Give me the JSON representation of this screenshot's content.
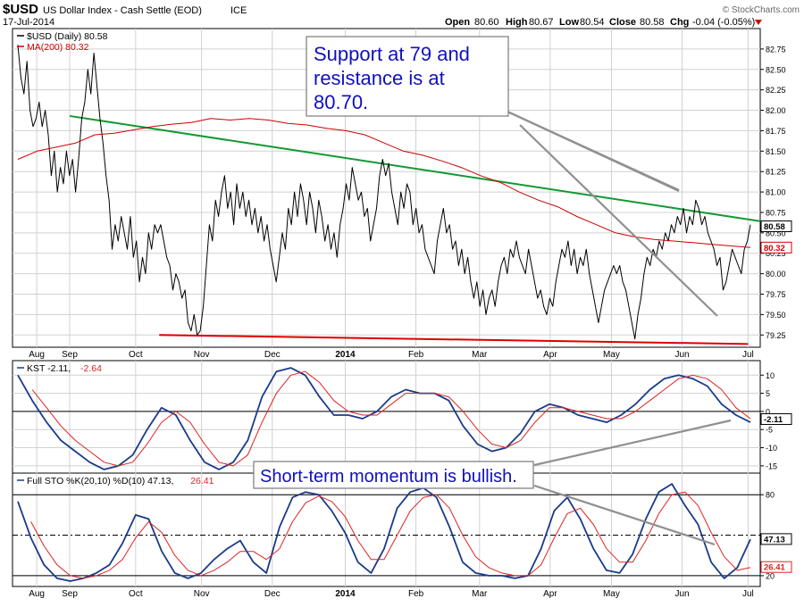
{
  "header": {
    "symbol": "$USD",
    "name": "US Dollar Index - Cash Settle (EOD)",
    "exchange": "ICE",
    "date": "17-Jul-2014",
    "open_label": "Open",
    "open": "80.60",
    "high_label": "High",
    "high": "80.67",
    "low_label": "Low",
    "low": "80.54",
    "close_label": "Close",
    "close": "80.58",
    "chg_label": "Chg",
    "chg": "-0.04 (-0.05%)",
    "watermark": "© StockCharts.com"
  },
  "colors": {
    "price": "#000000",
    "ma": "#cc0000",
    "trend_resistance": "#119933",
    "trend_support": "#dd0000",
    "fast": "#1a3a8a",
    "slow": "#dd2222",
    "grid": "#d0d0d0",
    "annotation_text": "#1010c0",
    "arrow": "#909090"
  },
  "annotations": {
    "top": [
      "Support at 79 and",
      "resistance is at",
      "80.70."
    ],
    "bottom": "Short-term momentum is bullish."
  },
  "chart_data": [
    {
      "type": "line",
      "legend": [
        {
          "text": "$USD (Daily) 80.58",
          "color": "#000000"
        },
        {
          "text": "MA(200) 80.32",
          "color": "#cc0000"
        }
      ],
      "ylim": [
        79.1,
        83.0
      ],
      "yticks": [
        "82.75",
        "82.50",
        "82.25",
        "82.00",
        "81.75",
        "81.50",
        "81.25",
        "81.00",
        "80.75",
        "80.50",
        "80.25",
        "80.00",
        "79.75",
        "79.50",
        "79.25"
      ],
      "last_labels": [
        {
          "text": "80.58",
          "value": 80.58,
          "color": "#000000"
        },
        {
          "text": "80.32",
          "value": 80.32,
          "color": "#cc0000"
        }
      ],
      "months": [
        "Aug",
        "Sep",
        "Oct",
        "Nov",
        "Dec",
        "2014",
        "Feb",
        "Mar",
        "Apr",
        "May",
        "Jun",
        "Jul"
      ],
      "month_index": [
        8,
        22,
        50,
        78,
        108,
        139,
        169,
        196,
        226,
        252,
        282,
        310
      ],
      "series": [
        {
          "key": "price",
          "values": [
            82.8,
            82.4,
            82.2,
            82.6,
            82.0,
            81.8,
            81.9,
            82.1,
            81.8,
            82.0,
            81.7,
            81.2,
            81.5,
            81.0,
            81.3,
            81.1,
            81.5,
            81.2,
            81.4,
            81.0,
            81.4,
            81.9,
            82.1,
            82.5,
            82.2,
            82.7,
            82.3,
            81.9,
            81.6,
            81.2,
            80.9,
            80.3,
            80.6,
            80.4,
            80.7,
            80.5,
            80.3,
            80.7,
            80.2,
            80.4,
            79.9,
            80.2,
            80.0,
            80.5,
            80.3,
            80.6,
            80.5,
            80.6,
            80.4,
            80.2,
            80.1,
            79.8,
            80.0,
            79.9,
            79.7,
            79.8,
            79.4,
            79.3,
            79.5,
            79.25,
            79.3,
            79.6,
            80.1,
            80.6,
            80.4,
            80.9,
            80.7,
            81.0,
            81.2,
            80.8,
            81.0,
            80.6,
            81.1,
            80.8,
            81.0,
            80.7,
            80.9,
            80.6,
            80.8,
            80.5,
            80.7,
            80.4,
            80.6,
            80.3,
            80.1,
            79.9,
            80.2,
            80.5,
            80.3,
            80.8,
            80.6,
            81.0,
            80.7,
            81.1,
            80.9,
            80.6,
            81.0,
            80.8,
            80.5,
            80.9,
            80.7,
            80.4,
            80.6,
            80.3,
            80.5,
            80.2,
            80.6,
            80.8,
            81.1,
            80.9,
            81.3,
            81.1,
            80.9,
            81.0,
            80.7,
            80.8,
            80.4,
            80.6,
            80.8,
            81.2,
            81.4,
            81.2,
            81.35,
            81.0,
            80.8,
            80.6,
            81.0,
            80.8,
            81.1,
            81.0,
            80.6,
            80.8,
            80.5,
            80.6,
            80.3,
            80.2,
            80.1,
            80.0,
            80.4,
            80.6,
            80.8,
            80.5,
            80.6,
            80.3,
            80.4,
            80.1,
            80.3,
            80.0,
            80.2,
            79.9,
            79.7,
            79.9,
            79.6,
            79.8,
            79.5,
            79.7,
            79.8,
            79.6,
            79.9,
            80.1,
            80.2,
            80.0,
            80.3,
            80.2,
            80.4,
            80.2,
            80.1,
            80.0,
            80.3,
            80.1,
            79.9,
            79.7,
            79.8,
            79.6,
            79.5,
            79.7,
            79.6,
            79.9,
            80.1,
            80.3,
            80.2,
            80.4,
            80.1,
            80.3,
            80.0,
            80.2,
            80.1,
            80.3,
            80.0,
            79.8,
            79.6,
            79.4,
            79.6,
            79.8,
            79.9,
            80.0,
            80.1,
            80.0,
            80.1,
            79.9,
            79.8,
            79.6,
            79.4,
            79.2,
            79.5,
            79.7,
            80.0,
            80.2,
            80.1,
            80.3,
            80.2,
            80.4,
            80.3,
            80.5,
            80.4,
            80.6,
            80.5,
            80.7,
            80.6,
            80.8,
            80.5,
            80.7,
            80.6,
            80.9,
            80.8,
            80.6,
            80.7,
            80.5,
            80.4,
            80.3,
            80.1,
            80.2,
            79.8,
            79.9,
            80.1,
            80.3,
            80.2,
            80.1,
            80.0,
            80.3,
            80.4,
            80.6
          ]
        },
        {
          "key": "ma",
          "values": [
            81.4,
            81.5,
            81.55,
            81.6,
            81.7,
            81.72,
            81.76,
            81.8,
            81.83,
            81.85,
            81.9,
            81.88,
            81.9,
            81.88,
            81.84,
            81.82,
            81.78,
            81.75,
            81.7,
            81.6,
            81.5,
            81.45,
            81.38,
            81.3,
            81.2,
            81.12,
            81.0,
            80.9,
            80.82,
            80.7,
            80.6,
            80.5,
            80.45,
            80.42,
            80.4,
            80.38,
            80.36,
            80.34,
            80.32
          ]
        }
      ],
      "trend_resistance": {
        "from": {
          "index": 22,
          "value": 81.93
        },
        "to": {
          "index": 310,
          "value": 80.62
        }
      },
      "trend_support": {
        "from": {
          "index": 60,
          "value": 79.25
        },
        "to": {
          "index": 310,
          "value": 79.14
        }
      }
    },
    {
      "type": "line",
      "legend": [
        {
          "text": "KST -2.11,",
          "color": "#000000"
        },
        {
          "text": "-2.64",
          "color": "#dd2222"
        }
      ],
      "ylim": [
        -17,
        14
      ],
      "yticks": [
        "10",
        "5",
        "0",
        "-5",
        "-10",
        "-15"
      ],
      "zero_line": 0,
      "last_labels": [
        {
          "text": "-2.11",
          "value": -2.11,
          "color": "#000000"
        }
      ],
      "series": [
        {
          "key": "fast",
          "values": [
            10,
            3,
            -3,
            -8,
            -11,
            -14,
            -16,
            -15,
            -12,
            -5,
            1,
            -1,
            -8,
            -14,
            -16,
            -14,
            -8,
            4,
            11,
            12,
            10,
            4,
            -1,
            -1,
            -2,
            0,
            4,
            6,
            5,
            5,
            3,
            -4,
            -9,
            -11,
            -10,
            -6,
            0,
            2,
            1,
            -1,
            -2,
            -3,
            -1,
            2,
            6,
            9,
            10,
            9,
            7,
            2,
            -1,
            -3
          ]
        },
        {
          "key": "slow",
          "values": [
            null,
            6,
            1,
            -4,
            -8,
            -11,
            -14,
            -15,
            -14,
            -9,
            -3,
            0,
            -3,
            -9,
            -14,
            -15,
            -12,
            -3,
            5,
            10,
            11,
            8,
            3,
            0,
            -1,
            -1,
            2,
            5,
            5,
            5,
            4,
            0,
            -5,
            -9,
            -10,
            -8,
            -3,
            1,
            1,
            0,
            -1,
            -2,
            -2,
            0,
            3,
            6,
            9,
            10,
            9,
            6,
            1,
            -2
          ]
        }
      ]
    },
    {
      "type": "line",
      "legend": [
        {
          "text": "Full STO %K(20,10) %D(10) 47.13,",
          "color": "#000000"
        },
        {
          "text": "26.41",
          "color": "#dd2222"
        }
      ],
      "ylim": [
        12,
        96
      ],
      "yticks": [
        "80",
        "20"
      ],
      "hlines": [
        80,
        50,
        20
      ],
      "last_labels": [
        {
          "text": "47.13",
          "value": 47.13,
          "color": "#000000"
        },
        {
          "text": "26.41",
          "value": 26.41,
          "color": "#dd2222"
        }
      ],
      "series": [
        {
          "key": "fast",
          "values": [
            75,
            48,
            28,
            18,
            16,
            18,
            22,
            28,
            44,
            65,
            62,
            38,
            22,
            18,
            22,
            32,
            40,
            46,
            30,
            22,
            56,
            78,
            82,
            80,
            68,
            52,
            30,
            22,
            40,
            70,
            82,
            85,
            78,
            56,
            30,
            22,
            20,
            20,
            18,
            20,
            40,
            68,
            78,
            62,
            40,
            24,
            22,
            36,
            62,
            82,
            88,
            72,
            58,
            30,
            18,
            26,
            47
          ]
        },
        {
          "key": "slow",
          "values": [
            null,
            60,
            42,
            28,
            20,
            18,
            20,
            24,
            32,
            48,
            60,
            52,
            35,
            24,
            20,
            24,
            30,
            38,
            38,
            32,
            40,
            60,
            74,
            79,
            75,
            64,
            46,
            32,
            32,
            50,
            68,
            78,
            80,
            70,
            50,
            34,
            26,
            22,
            20,
            20,
            28,
            48,
            66,
            70,
            58,
            40,
            30,
            30,
            46,
            66,
            80,
            82,
            72,
            52,
            34,
            24,
            26
          ]
        }
      ],
      "months": [
        "Aug",
        "Sep",
        "Oct",
        "Nov",
        "Dec",
        "2014",
        "Feb",
        "Mar",
        "Apr",
        "May",
        "Jun",
        "Jul"
      ]
    }
  ]
}
